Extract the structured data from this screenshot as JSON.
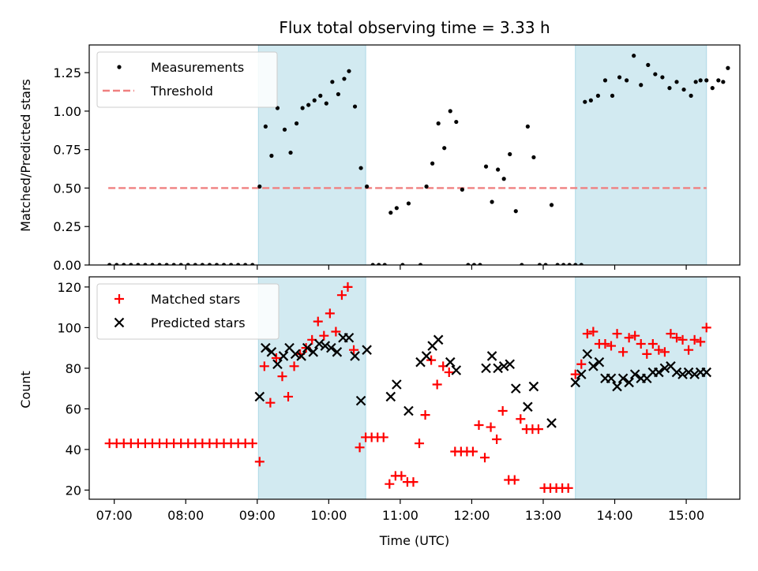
{
  "chart_data": [
    {
      "type": "scatter",
      "title": "Flux total observing time = 3.33 h",
      "xlabel": "",
      "ylabel": "Matched/Predicted stars",
      "xlim": [
        "06:39",
        "15:45"
      ],
      "ylim": [
        0,
        1.43
      ],
      "yticks": [
        "0.00",
        "0.25",
        "0.50",
        "0.75",
        "1.00",
        "1.25"
      ],
      "grid": false,
      "legend_position": "top-left",
      "highlight_color": "#add8e6",
      "highlight_spans": [
        [
          "09:01",
          "10:31"
        ],
        [
          "13:27",
          "15:17"
        ]
      ],
      "threshold": {
        "name": "Threshold",
        "value": 0.5,
        "x_range": [
          "06:55",
          "15:17"
        ],
        "color": "#f08080",
        "style": "dashed"
      },
      "series": [
        {
          "name": "Measurements",
          "color": "#000000",
          "marker": "dot",
          "points": [
            [
              "06:56",
              0
            ],
            [
              "07:02",
              0
            ],
            [
              "07:08",
              0
            ],
            [
              "07:14",
              0
            ],
            [
              "07:20",
              0
            ],
            [
              "07:26",
              0
            ],
            [
              "07:32",
              0
            ],
            [
              "07:38",
              0
            ],
            [
              "07:44",
              0
            ],
            [
              "07:50",
              0
            ],
            [
              "07:56",
              0
            ],
            [
              "08:02",
              0
            ],
            [
              "08:08",
              0
            ],
            [
              "08:14",
              0
            ],
            [
              "08:20",
              0
            ],
            [
              "08:26",
              0
            ],
            [
              "08:32",
              0
            ],
            [
              "08:38",
              0
            ],
            [
              "08:44",
              0
            ],
            [
              "08:50",
              0
            ],
            [
              "08:56",
              0
            ],
            [
              "09:02",
              0.51
            ],
            [
              "09:07",
              0.9
            ],
            [
              "09:12",
              0.71
            ],
            [
              "09:17",
              1.02
            ],
            [
              "09:23",
              0.88
            ],
            [
              "09:28",
              0.73
            ],
            [
              "09:33",
              0.92
            ],
            [
              "09:38",
              1.02
            ],
            [
              "09:43",
              1.04
            ],
            [
              "09:48",
              1.07
            ],
            [
              "09:53",
              1.1
            ],
            [
              "09:58",
              1.05
            ],
            [
              "10:03",
              1.19
            ],
            [
              "10:08",
              1.11
            ],
            [
              "10:13",
              1.21
            ],
            [
              "10:17",
              1.26
            ],
            [
              "10:22",
              1.03
            ],
            [
              "10:27",
              0.63
            ],
            [
              "10:32",
              0.51
            ],
            [
              "10:37",
              0
            ],
            [
              "10:42",
              0
            ],
            [
              "10:47",
              0
            ],
            [
              "10:52",
              0.34
            ],
            [
              "10:57",
              0.37
            ],
            [
              "11:02",
              0
            ],
            [
              "11:07",
              0.4
            ],
            [
              "11:17",
              0
            ],
            [
              "11:22",
              0.51
            ],
            [
              "11:27",
              0.66
            ],
            [
              "11:32",
              0.92
            ],
            [
              "11:37",
              0.76
            ],
            [
              "11:42",
              1.0
            ],
            [
              "11:47",
              0.93
            ],
            [
              "11:52",
              0.49
            ],
            [
              "11:57",
              0
            ],
            [
              "12:02",
              0
            ],
            [
              "12:07",
              0
            ],
            [
              "12:12",
              0.64
            ],
            [
              "12:17",
              0.41
            ],
            [
              "12:22",
              0.62
            ],
            [
              "12:27",
              0.56
            ],
            [
              "12:32",
              0.72
            ],
            [
              "12:37",
              0.35
            ],
            [
              "12:42",
              0
            ],
            [
              "12:47",
              0.9
            ],
            [
              "12:52",
              0.7
            ],
            [
              "12:57",
              0
            ],
            [
              "13:02",
              0
            ],
            [
              "13:07",
              0.39
            ],
            [
              "13:12",
              0
            ],
            [
              "13:17",
              0
            ],
            [
              "13:22",
              0
            ],
            [
              "13:27",
              0
            ],
            [
              "13:32",
              0
            ],
            [
              "13:35",
              1.06
            ],
            [
              "13:40",
              1.07
            ],
            [
              "13:46",
              1.1
            ],
            [
              "13:52",
              1.2
            ],
            [
              "13:58",
              1.1
            ],
            [
              "14:04",
              1.22
            ],
            [
              "14:10",
              1.2
            ],
            [
              "14:16",
              1.36
            ],
            [
              "14:22",
              1.17
            ],
            [
              "14:28",
              1.3
            ],
            [
              "14:34",
              1.24
            ],
            [
              "14:40",
              1.22
            ],
            [
              "14:46",
              1.15
            ],
            [
              "14:52",
              1.19
            ],
            [
              "14:58",
              1.14
            ],
            [
              "15:04",
              1.1
            ],
            [
              "15:08",
              1.19
            ],
            [
              "15:12",
              1.2
            ],
            [
              "15:17",
              1.2
            ],
            [
              "15:22",
              1.15
            ],
            [
              "15:27",
              1.2
            ],
            [
              "15:31",
              1.19
            ],
            [
              "15:35",
              1.28
            ]
          ]
        }
      ]
    },
    {
      "type": "scatter",
      "title": "",
      "xlabel": "Time (UTC)",
      "ylabel": "Count",
      "xlim": [
        "06:39",
        "15:45"
      ],
      "ylim": [
        15.5,
        125
      ],
      "yticks": [
        "20",
        "40",
        "60",
        "80",
        "100",
        "120"
      ],
      "xticks": [
        "07:00",
        "08:00",
        "09:00",
        "10:00",
        "11:00",
        "12:00",
        "13:00",
        "14:00",
        "15:00"
      ],
      "grid": false,
      "legend_position": "top-left",
      "highlight_color": "#add8e6",
      "highlight_spans": [
        [
          "09:01",
          "10:31"
        ],
        [
          "13:27",
          "15:17"
        ]
      ],
      "series": [
        {
          "name": "Matched stars",
          "color": "#ff0000",
          "marker": "plus",
          "points": [
            [
              "06:56",
              43
            ],
            [
              "07:02",
              43
            ],
            [
              "07:08",
              43
            ],
            [
              "07:14",
              43
            ],
            [
              "07:20",
              43
            ],
            [
              "07:26",
              43
            ],
            [
              "07:32",
              43
            ],
            [
              "07:38",
              43
            ],
            [
              "07:44",
              43
            ],
            [
              "07:50",
              43
            ],
            [
              "07:56",
              43
            ],
            [
              "08:02",
              43
            ],
            [
              "08:08",
              43
            ],
            [
              "08:14",
              43
            ],
            [
              "08:20",
              43
            ],
            [
              "08:26",
              43
            ],
            [
              "08:32",
              43
            ],
            [
              "08:38",
              43
            ],
            [
              "08:44",
              43
            ],
            [
              "08:50",
              43
            ],
            [
              "08:56",
              43
            ],
            [
              "09:02",
              34
            ],
            [
              "09:06",
              81
            ],
            [
              "09:11",
              63
            ],
            [
              "09:16",
              85
            ],
            [
              "09:21",
              76
            ],
            [
              "09:26",
              66
            ],
            [
              "09:31",
              81
            ],
            [
              "09:36",
              87
            ],
            [
              "09:41",
              90
            ],
            [
              "09:46",
              94
            ],
            [
              "09:51",
              103
            ],
            [
              "09:56",
              96
            ],
            [
              "10:01",
              107
            ],
            [
              "10:06",
              98
            ],
            [
              "10:11",
              116
            ],
            [
              "10:16",
              120
            ],
            [
              "10:21",
              89
            ],
            [
              "10:26",
              41
            ],
            [
              "10:31",
              46
            ],
            [
              "10:36",
              46
            ],
            [
              "10:41",
              46
            ],
            [
              "10:46",
              46
            ],
            [
              "10:51",
              23
            ],
            [
              "10:56",
              27
            ],
            [
              "11:01",
              27
            ],
            [
              "11:06",
              24
            ],
            [
              "11:11",
              24
            ],
            [
              "11:16",
              43
            ],
            [
              "11:21",
              57
            ],
            [
              "11:26",
              84
            ],
            [
              "11:31",
              72
            ],
            [
              "11:36",
              81
            ],
            [
              "11:41",
              78
            ],
            [
              "11:46",
              39
            ],
            [
              "11:51",
              39
            ],
            [
              "11:56",
              39
            ],
            [
              "12:01",
              39
            ],
            [
              "12:06",
              52
            ],
            [
              "12:11",
              36
            ],
            [
              "12:16",
              51
            ],
            [
              "12:21",
              45
            ],
            [
              "12:26",
              59
            ],
            [
              "12:31",
              25
            ],
            [
              "12:36",
              25
            ],
            [
              "12:41",
              55
            ],
            [
              "12:46",
              50
            ],
            [
              "12:51",
              50
            ],
            [
              "12:56",
              50
            ],
            [
              "13:01",
              21
            ],
            [
              "13:06",
              21
            ],
            [
              "13:11",
              21
            ],
            [
              "13:16",
              21
            ],
            [
              "13:21",
              21
            ],
            [
              "13:27",
              77
            ],
            [
              "13:32",
              82
            ],
            [
              "13:37",
              97
            ],
            [
              "13:42",
              98
            ],
            [
              "13:47",
              92
            ],
            [
              "13:52",
              92
            ],
            [
              "13:57",
              91
            ],
            [
              "14:02",
              97
            ],
            [
              "14:07",
              88
            ],
            [
              "14:12",
              95
            ],
            [
              "14:17",
              96
            ],
            [
              "14:22",
              92
            ],
            [
              "14:27",
              87
            ],
            [
              "14:32",
              92
            ],
            [
              "14:37",
              89
            ],
            [
              "14:42",
              88
            ],
            [
              "14:47",
              97
            ],
            [
              "14:52",
              95
            ],
            [
              "14:57",
              94
            ],
            [
              "15:02",
              89
            ],
            [
              "15:07",
              94
            ],
            [
              "15:12",
              93
            ],
            [
              "15:17",
              100
            ]
          ]
        },
        {
          "name": "Predicted stars",
          "color": "#000000",
          "marker": "cross",
          "points": [
            [
              "09:02",
              66
            ],
            [
              "09:07",
              90
            ],
            [
              "09:12",
              88
            ],
            [
              "09:17",
              82
            ],
            [
              "09:22",
              86
            ],
            [
              "09:27",
              90
            ],
            [
              "09:32",
              87
            ],
            [
              "09:37",
              86
            ],
            [
              "09:42",
              90
            ],
            [
              "09:47",
              88
            ],
            [
              "09:52",
              92
            ],
            [
              "09:57",
              91
            ],
            [
              "10:02",
              90
            ],
            [
              "10:07",
              88
            ],
            [
              "10:12",
              95
            ],
            [
              "10:17",
              95
            ],
            [
              "10:22",
              86
            ],
            [
              "10:27",
              64
            ],
            [
              "10:32",
              89
            ],
            [
              "10:52",
              66
            ],
            [
              "10:57",
              72
            ],
            [
              "11:07",
              59
            ],
            [
              "11:17",
              83
            ],
            [
              "11:22",
              86
            ],
            [
              "11:27",
              91
            ],
            [
              "11:32",
              94
            ],
            [
              "11:42",
              83
            ],
            [
              "11:47",
              79
            ],
            [
              "12:12",
              80
            ],
            [
              "12:17",
              86
            ],
            [
              "12:22",
              80
            ],
            [
              "12:27",
              81
            ],
            [
              "12:32",
              82
            ],
            [
              "12:37",
              70
            ],
            [
              "12:47",
              61
            ],
            [
              "12:52",
              71
            ],
            [
              "13:07",
              53
            ],
            [
              "13:27",
              73
            ],
            [
              "13:32",
              77
            ],
            [
              "13:37",
              87
            ],
            [
              "13:42",
              81
            ],
            [
              "13:47",
              83
            ],
            [
              "13:52",
              75
            ],
            [
              "13:57",
              75
            ],
            [
              "14:02",
              71
            ],
            [
              "14:07",
              75
            ],
            [
              "14:12",
              73
            ],
            [
              "14:17",
              77
            ],
            [
              "14:22",
              75
            ],
            [
              "14:27",
              75
            ],
            [
              "14:32",
              78
            ],
            [
              "14:37",
              78
            ],
            [
              "14:42",
              80
            ],
            [
              "14:47",
              81
            ],
            [
              "14:52",
              78
            ],
            [
              "14:57",
              77
            ],
            [
              "15:02",
              78
            ],
            [
              "15:07",
              77
            ],
            [
              "15:12",
              78
            ],
            [
              "15:17",
              78
            ]
          ]
        }
      ]
    }
  ]
}
